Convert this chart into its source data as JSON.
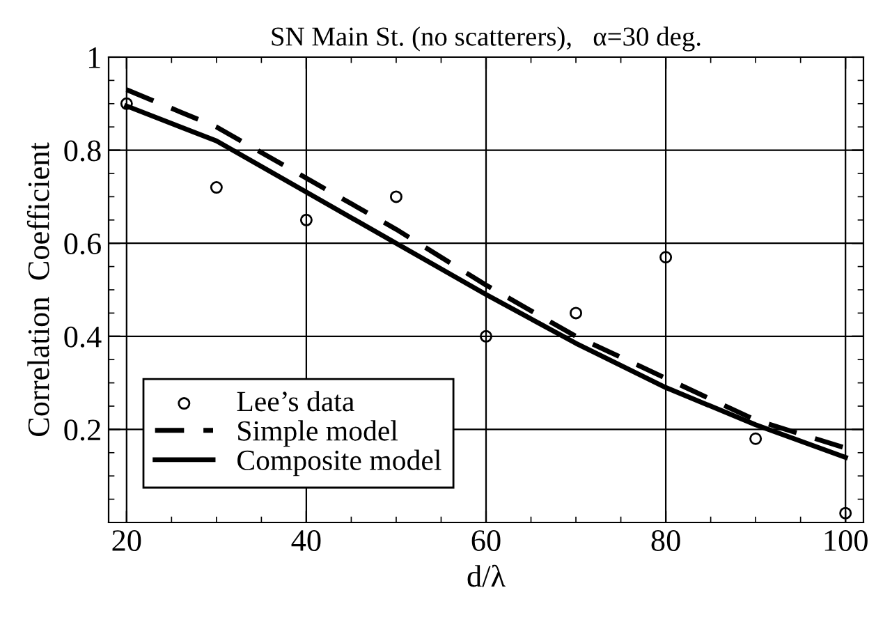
{
  "chart_data": {
    "type": "line",
    "title": "SN Main St. (no scatterers),   α=30 deg.",
    "xlabel": "d/λ",
    "ylabel": "Correlation  Coefficient",
    "x": [
      20,
      30,
      40,
      50,
      60,
      70,
      80,
      90,
      100
    ],
    "series": [
      {
        "name": "Lee’s data",
        "type": "scatter",
        "color": "#000000",
        "marker": "circle",
        "values": [
          0.9,
          0.72,
          0.65,
          0.7,
          0.4,
          0.45,
          0.57,
          0.18,
          0.02
        ]
      },
      {
        "name": "Simple model",
        "color": "#000000",
        "line_style": "dashed",
        "marker": "none",
        "values": [
          0.93,
          0.85,
          0.74,
          0.63,
          0.51,
          0.4,
          0.31,
          0.22,
          0.16
        ]
      },
      {
        "name": "Composite model",
        "color": "#000000",
        "line_style": "solid",
        "marker": "none",
        "values": [
          0.895,
          0.82,
          0.71,
          0.6,
          0.49,
          0.385,
          0.29,
          0.21,
          0.14
        ]
      }
    ],
    "xlim": [
      18,
      102
    ],
    "ylim": [
      0,
      1
    ],
    "xticks": [
      20,
      40,
      60,
      80,
      100
    ],
    "yticks": [
      0.2,
      0.4,
      0.6,
      0.8,
      1
    ],
    "grid": true,
    "legend": "bottom left"
  }
}
